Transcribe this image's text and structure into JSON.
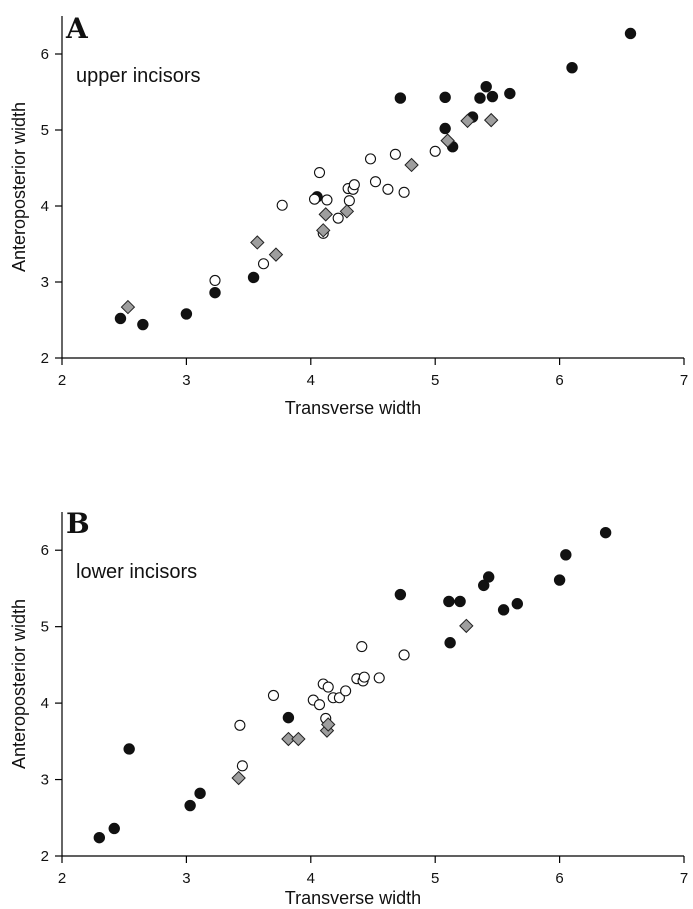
{
  "chart_data": [
    {
      "type": "scatter",
      "panel_label": "A",
      "subtitle": "upper incisors",
      "xlabel": "Transverse width",
      "ylabel": "Anteroposterior width",
      "xlim": [
        2,
        7
      ],
      "ylim": [
        2,
        6.5
      ],
      "xticks": [
        2,
        3,
        4,
        5,
        6,
        7
      ],
      "yticks": [
        2,
        3,
        4,
        5,
        6
      ],
      "series": [
        {
          "marker": "filled-circle",
          "color": "#111111",
          "points": [
            [
              2.47,
              2.52
            ],
            [
              2.65,
              2.44
            ],
            [
              3.0,
              2.58
            ],
            [
              3.23,
              2.86
            ],
            [
              3.54,
              3.06
            ],
            [
              4.05,
              4.12
            ],
            [
              4.72,
              5.42
            ],
            [
              5.08,
              5.43
            ],
            [
              5.08,
              5.02
            ],
            [
              5.14,
              4.78
            ],
            [
              5.3,
              5.17
            ],
            [
              5.36,
              5.42
            ],
            [
              5.41,
              5.57
            ],
            [
              5.46,
              5.44
            ],
            [
              5.6,
              5.48
            ],
            [
              6.1,
              5.82
            ],
            [
              6.57,
              6.27
            ]
          ]
        },
        {
          "marker": "open-circle",
          "color": "#ffffff",
          "points": [
            [
              3.23,
              3.02
            ],
            [
              3.62,
              3.24
            ],
            [
              3.77,
              4.01
            ],
            [
              4.03,
              4.09
            ],
            [
              4.07,
              4.44
            ],
            [
              4.1,
              3.64
            ],
            [
              4.13,
              4.08
            ],
            [
              4.22,
              3.84
            ],
            [
              4.3,
              4.23
            ],
            [
              4.31,
              4.07
            ],
            [
              4.34,
              4.22
            ],
            [
              4.35,
              4.28
            ],
            [
              4.48,
              4.62
            ],
            [
              4.52,
              4.32
            ],
            [
              4.62,
              4.22
            ],
            [
              4.68,
              4.68
            ],
            [
              4.75,
              4.18
            ],
            [
              5.0,
              4.72
            ]
          ]
        },
        {
          "marker": "diamond",
          "color": "#9e9e9e",
          "points": [
            [
              2.53,
              2.67
            ],
            [
              3.57,
              3.52
            ],
            [
              3.72,
              3.36
            ],
            [
              4.1,
              3.68
            ],
            [
              4.12,
              3.89
            ],
            [
              4.29,
              3.93
            ],
            [
              4.81,
              4.54
            ],
            [
              5.1,
              4.86
            ],
            [
              5.26,
              5.12
            ],
            [
              5.45,
              5.13
            ]
          ]
        }
      ]
    },
    {
      "type": "scatter",
      "panel_label": "B",
      "subtitle": "lower incisors",
      "xlabel": "Transverse width",
      "ylabel": "Anteroposterior width",
      "xlim": [
        2,
        7
      ],
      "ylim": [
        2,
        6.5
      ],
      "xticks": [
        2,
        3,
        4,
        5,
        6,
        7
      ],
      "yticks": [
        2,
        3,
        4,
        5,
        6
      ],
      "series": [
        {
          "marker": "filled-circle",
          "color": "#111111",
          "points": [
            [
              2.3,
              2.24
            ],
            [
              2.42,
              2.36
            ],
            [
              2.54,
              3.4
            ],
            [
              3.03,
              2.66
            ],
            [
              3.11,
              2.82
            ],
            [
              3.82,
              3.81
            ],
            [
              4.72,
              5.42
            ],
            [
              5.11,
              5.33
            ],
            [
              5.12,
              4.79
            ],
            [
              5.2,
              5.33
            ],
            [
              5.39,
              5.54
            ],
            [
              5.43,
              5.65
            ],
            [
              5.55,
              5.22
            ],
            [
              5.66,
              5.3
            ],
            [
              6.0,
              5.61
            ],
            [
              6.05,
              5.94
            ],
            [
              6.37,
              6.23
            ]
          ]
        },
        {
          "marker": "open-circle",
          "color": "#ffffff",
          "points": [
            [
              3.43,
              3.71
            ],
            [
              3.45,
              3.18
            ],
            [
              3.7,
              4.1
            ],
            [
              4.02,
              4.04
            ],
            [
              4.07,
              3.98
            ],
            [
              4.1,
              4.25
            ],
            [
              4.12,
              3.8
            ],
            [
              4.14,
              4.21
            ],
            [
              4.18,
              4.07
            ],
            [
              4.23,
              4.07
            ],
            [
              4.28,
              4.16
            ],
            [
              4.37,
              4.32
            ],
            [
              4.41,
              4.74
            ],
            [
              4.42,
              4.29
            ],
            [
              4.43,
              4.34
            ],
            [
              4.55,
              4.33
            ],
            [
              4.75,
              4.63
            ]
          ]
        },
        {
          "marker": "diamond",
          "color": "#9e9e9e",
          "points": [
            [
              3.42,
              3.02
            ],
            [
              3.82,
              3.53
            ],
            [
              3.9,
              3.53
            ],
            [
              4.13,
              3.64
            ],
            [
              4.14,
              3.72
            ],
            [
              5.25,
              5.01
            ]
          ]
        }
      ]
    }
  ]
}
